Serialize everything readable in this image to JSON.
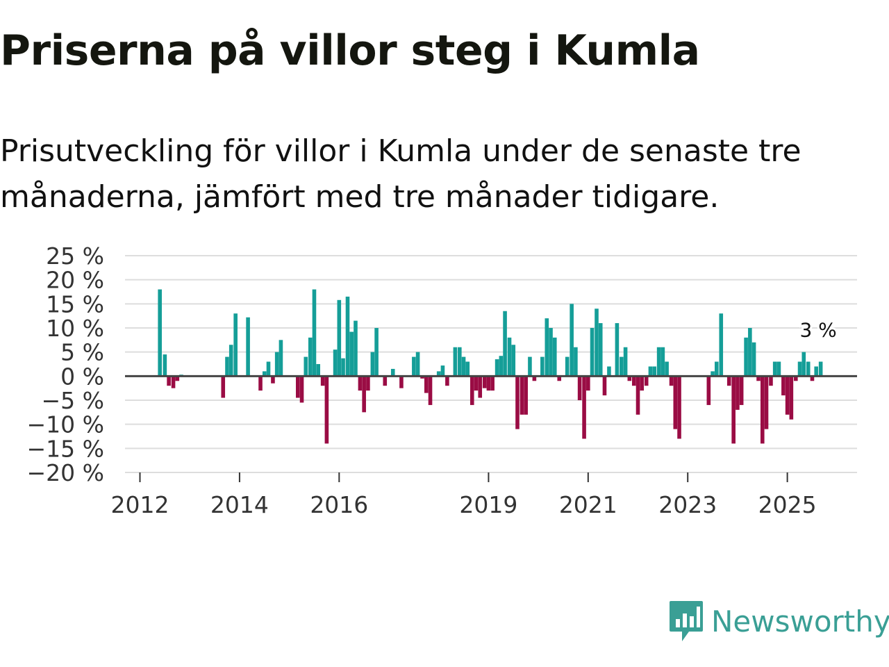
{
  "title": "Priserna på villor steg i Kumla",
  "subtitle": "Prisutveckling för villor i Kumla under de senaste tre månaderna, jämfört med tre månader tidigare.",
  "colors": {
    "positive": "#159e98",
    "negative": "#9a0c44",
    "grid": "#dddddd",
    "zero": "#444444",
    "brand": "#3a9f95"
  },
  "logo": {
    "icon": "newsworthy-logo-icon",
    "text": "Newsworthy"
  },
  "chart_data": {
    "type": "bar",
    "title": "Priserna på villor steg i Kumla",
    "xlabel": "",
    "ylabel": "",
    "ylim": [
      -20,
      25
    ],
    "yticks": [
      -20,
      -15,
      -10,
      -5,
      0,
      5,
      10,
      15,
      20,
      25
    ],
    "ytick_labels": [
      "−20 %",
      "−15 %",
      "−10 %",
      "−5 %",
      "0 %",
      "5 %",
      "10 %",
      "15 %",
      "20 %",
      "25 %"
    ],
    "xticks": [
      2012,
      2014,
      2016,
      2019,
      2021,
      2023,
      2025
    ],
    "xtick_labels": [
      "2012",
      "2014",
      "2016",
      "2019",
      "2021",
      "2023",
      "2025"
    ],
    "xlim": [
      2011.7,
      2026.4
    ],
    "grid": true,
    "annotation": {
      "text": "3 %",
      "x": 2025.3,
      "value": 3
    },
    "series": [
      {
        "name": "Prisutveckling",
        "points": [
          [
            2012.4,
            18
          ],
          [
            2012.5,
            4.5
          ],
          [
            2012.58,
            -2
          ],
          [
            2012.67,
            -2.5
          ],
          [
            2012.75,
            -1
          ],
          [
            2012.83,
            0.3
          ],
          [
            2013.67,
            -4.5
          ],
          [
            2013.75,
            4
          ],
          [
            2013.83,
            6.5
          ],
          [
            2013.92,
            13
          ],
          [
            2014.17,
            12.2
          ],
          [
            2014.42,
            -3
          ],
          [
            2014.5,
            1
          ],
          [
            2014.58,
            3
          ],
          [
            2014.67,
            -1.5
          ],
          [
            2014.75,
            5
          ],
          [
            2014.83,
            7.5
          ],
          [
            2015.17,
            -4.5
          ],
          [
            2015.25,
            -5.5
          ],
          [
            2015.33,
            4
          ],
          [
            2015.42,
            8
          ],
          [
            2015.5,
            18
          ],
          [
            2015.58,
            2.5
          ],
          [
            2015.67,
            -2
          ],
          [
            2015.75,
            -14
          ],
          [
            2015.92,
            5.5
          ],
          [
            2016.0,
            15.8
          ],
          [
            2016.08,
            3.7
          ],
          [
            2016.17,
            16.5
          ],
          [
            2016.25,
            9.2
          ],
          [
            2016.33,
            11.5
          ],
          [
            2016.42,
            -3
          ],
          [
            2016.5,
            -7.5
          ],
          [
            2016.58,
            -3
          ],
          [
            2016.67,
            5
          ],
          [
            2016.75,
            10
          ],
          [
            2016.92,
            -2
          ],
          [
            2017.08,
            1.5
          ],
          [
            2017.25,
            -2.5
          ],
          [
            2017.5,
            4
          ],
          [
            2017.58,
            5
          ],
          [
            2017.67,
            -0.5
          ],
          [
            2017.75,
            -3.5
          ],
          [
            2017.83,
            -6
          ],
          [
            2018.0,
            1
          ],
          [
            2018.08,
            2.2
          ],
          [
            2018.17,
            -2
          ],
          [
            2018.33,
            6
          ],
          [
            2018.42,
            6
          ],
          [
            2018.5,
            4
          ],
          [
            2018.58,
            3
          ],
          [
            2018.67,
            -6
          ],
          [
            2018.75,
            -3
          ],
          [
            2018.83,
            -4.5
          ],
          [
            2018.92,
            -2.5
          ],
          [
            2019.0,
            -3
          ],
          [
            2019.08,
            -3
          ],
          [
            2019.17,
            3.5
          ],
          [
            2019.25,
            4.2
          ],
          [
            2019.33,
            13.5
          ],
          [
            2019.42,
            8
          ],
          [
            2019.5,
            6.5
          ],
          [
            2019.58,
            -11
          ],
          [
            2019.67,
            -8
          ],
          [
            2019.75,
            -8
          ],
          [
            2019.83,
            4
          ],
          [
            2019.92,
            -1
          ],
          [
            2020.08,
            4
          ],
          [
            2020.17,
            12
          ],
          [
            2020.25,
            10
          ],
          [
            2020.33,
            8
          ],
          [
            2020.42,
            -1
          ],
          [
            2020.58,
            4
          ],
          [
            2020.67,
            15
          ],
          [
            2020.75,
            6
          ],
          [
            2020.83,
            -5
          ],
          [
            2020.92,
            -13
          ],
          [
            2021.0,
            -3
          ],
          [
            2021.08,
            10
          ],
          [
            2021.17,
            14
          ],
          [
            2021.25,
            11
          ],
          [
            2021.33,
            -4
          ],
          [
            2021.42,
            2
          ],
          [
            2021.58,
            11
          ],
          [
            2021.67,
            4
          ],
          [
            2021.75,
            6
          ],
          [
            2021.83,
            -1
          ],
          [
            2021.92,
            -2
          ],
          [
            2022.0,
            -8
          ],
          [
            2022.08,
            -3
          ],
          [
            2022.17,
            -2
          ],
          [
            2022.25,
            2
          ],
          [
            2022.33,
            2
          ],
          [
            2022.42,
            6
          ],
          [
            2022.5,
            6
          ],
          [
            2022.58,
            3
          ],
          [
            2022.67,
            -2
          ],
          [
            2022.75,
            -11
          ],
          [
            2022.83,
            -13
          ],
          [
            2023.42,
            -6
          ],
          [
            2023.5,
            1
          ],
          [
            2023.58,
            3
          ],
          [
            2023.67,
            13
          ],
          [
            2023.83,
            -2
          ],
          [
            2023.92,
            -14
          ],
          [
            2024.0,
            -7
          ],
          [
            2024.08,
            -6
          ],
          [
            2024.17,
            8
          ],
          [
            2024.25,
            10
          ],
          [
            2024.33,
            7
          ],
          [
            2024.42,
            -1
          ],
          [
            2024.5,
            -14
          ],
          [
            2024.58,
            -11
          ],
          [
            2024.67,
            -2
          ],
          [
            2024.75,
            3
          ],
          [
            2024.83,
            3
          ],
          [
            2024.92,
            -4
          ],
          [
            2025.0,
            -8
          ],
          [
            2025.08,
            -9
          ],
          [
            2025.17,
            -1
          ],
          [
            2025.25,
            3
          ],
          [
            2025.33,
            5
          ],
          [
            2025.42,
            3
          ],
          [
            2025.5,
            -1
          ],
          [
            2025.58,
            2
          ],
          [
            2025.67,
            3
          ]
        ]
      }
    ]
  }
}
